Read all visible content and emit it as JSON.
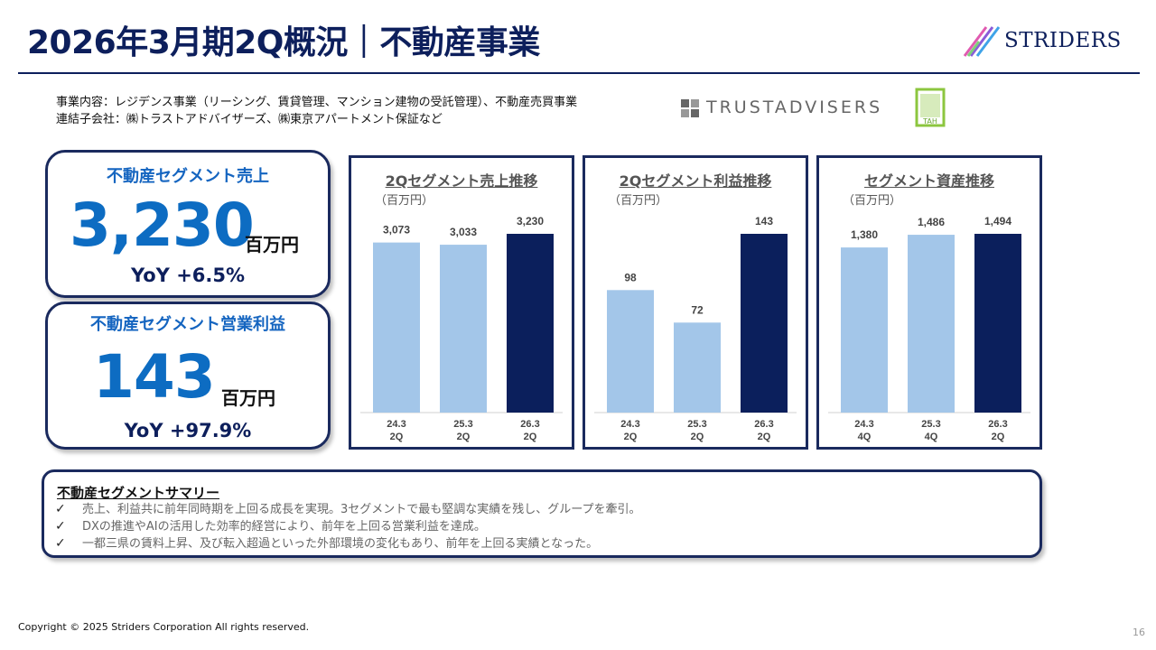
{
  "title": "2026年3月期2Q概況｜不動産事業",
  "logo": {
    "text": "STRIDERS",
    "colors": [
      "#e05ab0",
      "#8a5cd8",
      "#3fa3e8",
      "#7fd07a"
    ]
  },
  "description": {
    "line1": "事業内容：レジデンス事業（リーシング、賃貸管理、マンション建物の受託管理）、不動産売買事業",
    "line2": "連結子会社：㈱トラストアドバイザーズ、㈱東京アパートメント保証など"
  },
  "partner_logos": {
    "trust_advisers": "TRUSTADVISERS",
    "tah": "TAH"
  },
  "kpis": {
    "sales": {
      "label": "不動産セグメント売上",
      "value": "3,230",
      "unit": "百万円",
      "yoy": "YoY  +6.5%"
    },
    "profit": {
      "label": "不動産セグメント営業利益",
      "value": "143",
      "unit": "百万円",
      "yoy": "YoY  +97.9%"
    }
  },
  "chart_data": [
    {
      "type": "bar",
      "title": "2Qセグメント売上推移",
      "unit": "（百万円）",
      "categories": [
        [
          "24.3",
          "2Q"
        ],
        [
          "25.3",
          "2Q"
        ],
        [
          "26.3",
          "2Q"
        ]
      ],
      "values": [
        3073,
        3033,
        3230
      ],
      "labels": [
        "3,073",
        "3,033",
        "3,230"
      ],
      "colors": [
        "#a3c6e9",
        "#a3c6e9",
        "#0b1f5c"
      ]
    },
    {
      "type": "bar",
      "title": "2Qセグメント利益推移",
      "unit": "（百万円）",
      "categories": [
        [
          "24.3",
          "2Q"
        ],
        [
          "25.3",
          "2Q"
        ],
        [
          "26.3",
          "2Q"
        ]
      ],
      "values": [
        98,
        72,
        143
      ],
      "labels": [
        "98",
        "72",
        "143"
      ],
      "colors": [
        "#a3c6e9",
        "#a3c6e9",
        "#0b1f5c"
      ]
    },
    {
      "type": "bar",
      "title": "セグメント資産推移",
      "unit": "（百万円）",
      "categories": [
        [
          "24.3",
          "4Q"
        ],
        [
          "25.3",
          "4Q"
        ],
        [
          "26.3",
          "2Q"
        ]
      ],
      "values": [
        1380,
        1486,
        1494
      ],
      "labels": [
        "1,380",
        "1,486",
        "1,494"
      ],
      "colors": [
        "#a3c6e9",
        "#a3c6e9",
        "#0b1f5c"
      ]
    }
  ],
  "summary": {
    "title": "不動産セグメントサマリー",
    "items": [
      "売上、利益共に前年同時期を上回る成長を実現。3セグメントで最も堅調な実績を残し、グループを牽引。",
      "DXの推進やAIの活用した効率的経営により、前年を上回る営業利益を達成。",
      "一都三県の賃料上昇、及び転入超過といった外部環境の変化もあり、前年を上回る実績となった。"
    ],
    "check": "✓"
  },
  "footer": {
    "copyright": "Copyright © 2025 Striders Corporation All rights reserved.",
    "page": "16"
  }
}
